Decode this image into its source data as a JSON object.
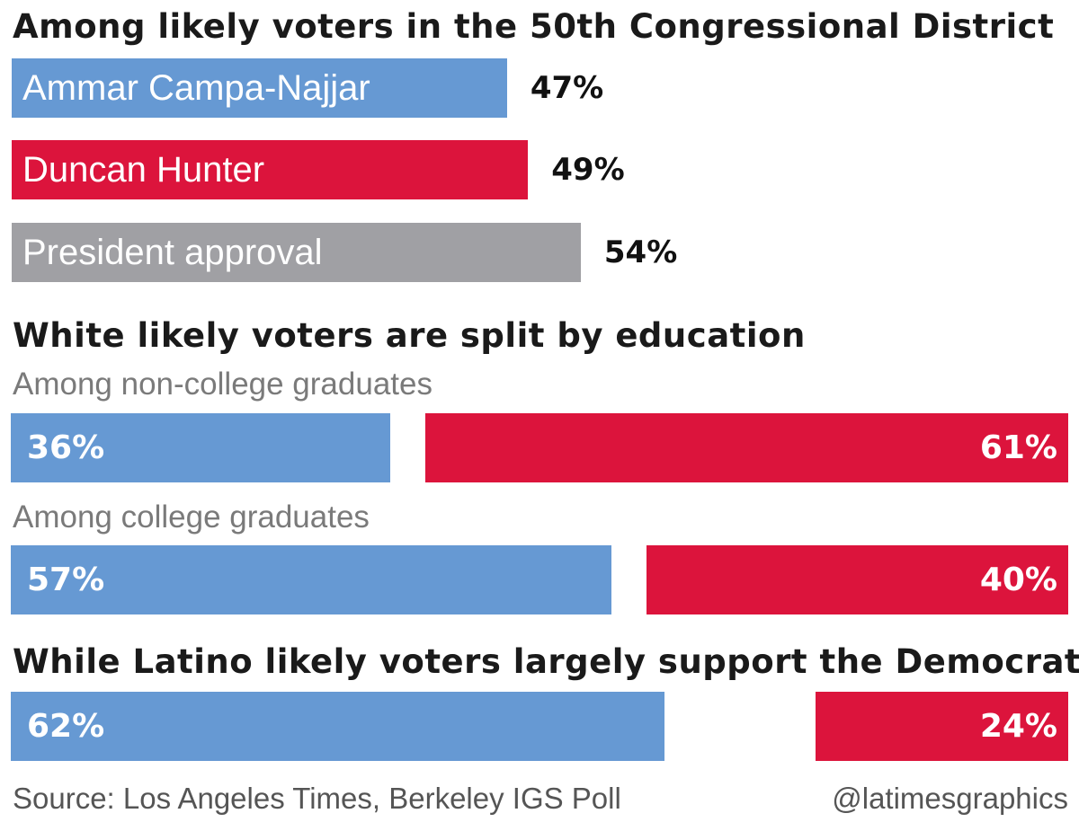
{
  "colors": {
    "democrat": "#6699d3",
    "republican": "#dc143c",
    "approval": "#a0a0a4"
  },
  "section1": {
    "heading": "Among likely voters in the 50th Congressional District",
    "bars": [
      {
        "label": "Ammar Campa-Najjar",
        "value": 47,
        "value_label": "47%",
        "color_key": "democrat"
      },
      {
        "label": "Duncan Hunter",
        "value": 49,
        "value_label": "49%",
        "color_key": "republican"
      },
      {
        "label": "President approval",
        "value": 54,
        "value_label": "54%",
        "color_key": "approval"
      }
    ]
  },
  "section2": {
    "heading": "White likely voters are split by education",
    "groups": [
      {
        "subheading": "Among non-college graduates",
        "dem": 36,
        "dem_label": "36%",
        "rep": 61,
        "rep_label": "61%"
      },
      {
        "subheading": "Among college graduates",
        "dem": 57,
        "dem_label": "57%",
        "rep": 40,
        "rep_label": "40%"
      }
    ]
  },
  "section3": {
    "heading": "While Latino likely voters largely support the Democrat",
    "dem": 62,
    "dem_label": "62%",
    "rep": 24,
    "rep_label": "24%"
  },
  "footer": {
    "source": "Source: Los Angeles Times, Berkeley IGS Poll",
    "credit": "@latimesgraphics"
  },
  "chart_data": [
    {
      "type": "bar",
      "title": "Among likely voters in the 50th Congressional District",
      "categories": [
        "Ammar Campa-Najjar",
        "Duncan Hunter",
        "President approval"
      ],
      "values": [
        47,
        49,
        54
      ]
    },
    {
      "type": "bar",
      "title": "White likely voters are split by education",
      "categories": [
        "Among non-college graduates",
        "Among college graduates"
      ],
      "series": [
        {
          "values": [
            36,
            57
          ]
        },
        {
          "values": [
            61,
            40
          ]
        }
      ]
    },
    {
      "type": "bar",
      "title": "While Latino likely voters largely support the Democrat",
      "categories": [
        ""
      ],
      "series": [
        {
          "values": [
            62
          ]
        },
        {
          "values": [
            24
          ]
        }
      ]
    }
  ]
}
